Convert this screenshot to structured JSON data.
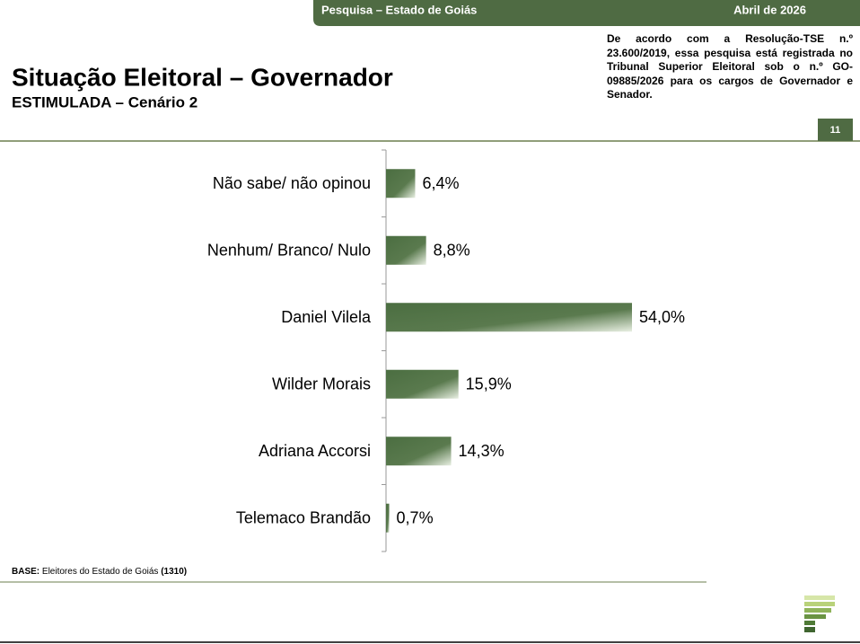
{
  "header": {
    "survey": "Pesquisa – Estado de Goiás",
    "date": "Abril de 2026",
    "title": "Situação Eleitoral – Governador",
    "subtitle": "ESTIMULADA – Cenário 2",
    "note": "De acordo com a Resolução-TSE n.º 23.600/2019, essa pesquisa está registrada no Tribunal Superior Eleitoral sob o n.º GO-09885/2026 para os cargos de Governador e Senador.",
    "page": "11"
  },
  "chart_data": {
    "type": "hbar",
    "categories": [
      "Não sabe/ não opinou",
      "Nenhum/ Branco/ Nulo",
      "Daniel Vilela",
      "Wilder Morais",
      "Adriana Accorsi",
      "Telemaco Brandão"
    ],
    "values": [
      6.4,
      8.8,
      54.0,
      15.9,
      14.3,
      0.7
    ],
    "value_labels": [
      "6,4%",
      "8,8%",
      "54,0%",
      "15,9%",
      "14,3%",
      "0,7%"
    ],
    "color": "#4b6e41"
  },
  "footer": {
    "base_label": "BASE:",
    "base_text": "Eleitores do Estado de Goiás",
    "base_count": "(1310)"
  }
}
